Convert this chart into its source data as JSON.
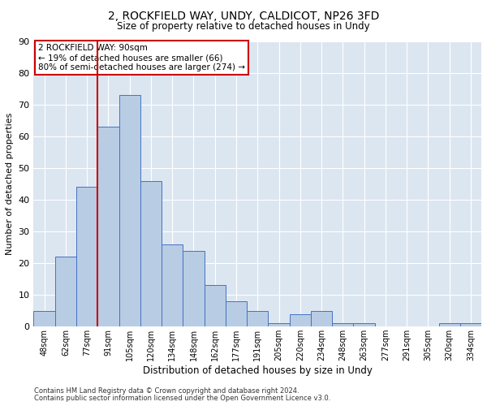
{
  "title1": "2, ROCKFIELD WAY, UNDY, CALDICOT, NP26 3FD",
  "title2": "Size of property relative to detached houses in Undy",
  "xlabel": "Distribution of detached houses by size in Undy",
  "ylabel": "Number of detached properties",
  "footer1": "Contains HM Land Registry data © Crown copyright and database right 2024.",
  "footer2": "Contains public sector information licensed under the Open Government Licence v3.0.",
  "annotation_line1": "2 ROCKFIELD WAY: 90sqm",
  "annotation_line2": "← 19% of detached houses are smaller (66)",
  "annotation_line3": "80% of semi-detached houses are larger (274) →",
  "bar_labels": [
    "48sqm",
    "62sqm",
    "77sqm",
    "91sqm",
    "105sqm",
    "120sqm",
    "134sqm",
    "148sqm",
    "162sqm",
    "177sqm",
    "191sqm",
    "205sqm",
    "220sqm",
    "234sqm",
    "248sqm",
    "263sqm",
    "277sqm",
    "291sqm",
    "305sqm",
    "320sqm",
    "334sqm"
  ],
  "bar_values": [
    5,
    22,
    44,
    63,
    73,
    46,
    26,
    24,
    13,
    8,
    5,
    1,
    4,
    5,
    1,
    1,
    0,
    0,
    0,
    1,
    1
  ],
  "bar_color": "#b8cce4",
  "bar_edge_color": "#4472c4",
  "vline_x_index": 3,
  "vline_color": "#cc0000",
  "bg_color": "#dce6f1",
  "annotation_box_color": "#cc0000",
  "ylim": [
    0,
    90
  ],
  "yticks": [
    0,
    10,
    20,
    30,
    40,
    50,
    60,
    70,
    80,
    90
  ]
}
